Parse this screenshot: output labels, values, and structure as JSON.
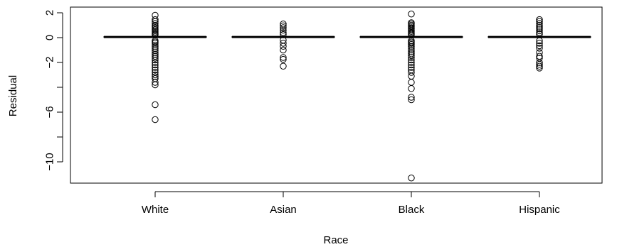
{
  "chart_data": {
    "type": "boxplot",
    "xlabel": "Race",
    "ylabel": "Residual",
    "categories": [
      "White",
      "Asian",
      "Black",
      "Hispanic"
    ],
    "ylim": [
      -12.0,
      2.3
    ],
    "y_ticks": [
      2,
      0,
      -2,
      -4,
      -6,
      -8,
      -10
    ],
    "y_tick_labels": [
      "2",
      "0",
      "−2",
      "",
      "−6",
      "",
      "−10"
    ],
    "grid": false,
    "legend": "none",
    "colors": {
      "ink": "#000000",
      "background": "#ffffff"
    },
    "boxes": [
      {
        "category": "White",
        "median": 0.05,
        "q1": 0.02,
        "q3": 0.08,
        "whisker_low": -0.05,
        "whisker_high": 0.18,
        "outliers": [
          1.8,
          1.45,
          1.3,
          1.15,
          1.0,
          0.9,
          0.78,
          0.65,
          0.55,
          0.45,
          0.35,
          0.28,
          0.22,
          -0.25,
          -0.35,
          -0.45,
          -0.6,
          -0.75,
          -0.9,
          -1.05,
          -1.2,
          -1.35,
          -1.5,
          -1.65,
          -1.8,
          -2.0,
          -2.2,
          -2.4,
          -2.6,
          -2.8,
          -3.0,
          -3.15,
          -3.3,
          -3.6,
          -3.8,
          -5.4,
          -6.6
        ]
      },
      {
        "category": "Asian",
        "median": 0.05,
        "q1": 0.02,
        "q3": 0.08,
        "whisker_low": -0.05,
        "whisker_high": 0.15,
        "outliers": [
          1.1,
          0.95,
          0.8,
          0.6,
          0.4,
          0.25,
          -0.2,
          -0.45,
          -0.7,
          -1.0,
          -1.6,
          -1.75,
          -2.3
        ]
      },
      {
        "category": "Black",
        "median": 0.05,
        "q1": 0.02,
        "q3": 0.08,
        "whisker_low": -0.05,
        "whisker_high": 0.18,
        "outliers": [
          1.9,
          1.2,
          1.1,
          1.0,
          0.9,
          0.8,
          0.7,
          0.6,
          0.5,
          0.4,
          0.3,
          0.22,
          -0.25,
          -0.35,
          -0.45,
          -0.55,
          -0.7,
          -0.85,
          -1.0,
          -1.15,
          -1.3,
          -1.45,
          -1.6,
          -1.8,
          -2.0,
          -2.2,
          -2.4,
          -2.6,
          -2.8,
          -3.1,
          -3.6,
          -4.1,
          -4.8,
          -5.0,
          -11.3
        ]
      },
      {
        "category": "Hispanic",
        "median": 0.05,
        "q1": 0.02,
        "q3": 0.08,
        "whisker_low": -0.05,
        "whisker_high": 0.15,
        "outliers": [
          1.45,
          1.3,
          1.15,
          1.0,
          0.85,
          0.7,
          0.55,
          0.4,
          0.28,
          -0.25,
          -0.45,
          -0.65,
          -0.85,
          -1.2,
          -1.5,
          -1.65,
          -2.0,
          -2.15,
          -2.3,
          -2.45
        ]
      }
    ]
  }
}
